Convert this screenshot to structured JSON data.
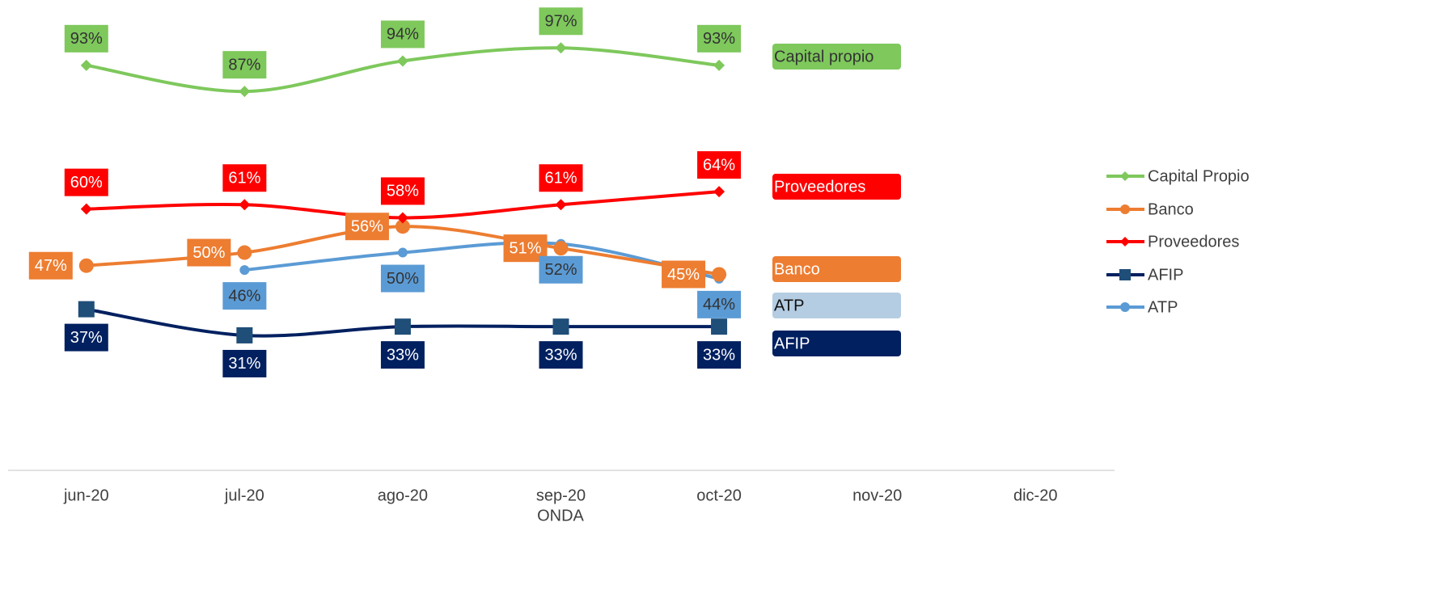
{
  "chart_data": {
    "type": "line",
    "categories": [
      "jun-20",
      "jul-20",
      "ago-20",
      "sep-20",
      "oct-20",
      "nov-20",
      "dic-20"
    ],
    "x_label": "ONDA",
    "ylim": [
      0,
      108
    ],
    "smooth": true,
    "legend": "right",
    "series": [
      {
        "name": "Capital Propio",
        "tag": "Capital propio",
        "color": "#7ec85c",
        "tag_color": "#7ec85c",
        "marker": "diamond",
        "values": [
          93,
          87,
          94,
          97,
          93,
          null,
          null
        ],
        "value_labels": [
          "93%",
          "87%",
          "94%",
          "97%",
          "93%",
          null,
          null
        ]
      },
      {
        "name": "Banco",
        "tag": "Banco",
        "color": "#ed7d31",
        "tag_color": "#ed7d31",
        "marker": "circle",
        "values": [
          47,
          50,
          56,
          51,
          45,
          null,
          null
        ],
        "value_labels": [
          "47%",
          "50%",
          "56%",
          "51%",
          "45%",
          null,
          null
        ]
      },
      {
        "name": "Proveedores",
        "tag": "Proveedores",
        "color": "#ff0000",
        "tag_color": "#ff0000",
        "marker": "diamond",
        "values": [
          60,
          61,
          58,
          61,
          64,
          null,
          null
        ],
        "value_labels": [
          "60%",
          "61%",
          "58%",
          "61%",
          "64%",
          null,
          null
        ]
      },
      {
        "name": "AFIP",
        "tag": "AFIP",
        "color": "#002060",
        "tag_color": "#002060",
        "marker_color": "#1f4e79",
        "marker": "square",
        "values": [
          37,
          31,
          33,
          33,
          33,
          null,
          null
        ],
        "value_labels": [
          "37%",
          "31%",
          "33%",
          "33%",
          "33%",
          null,
          null
        ]
      },
      {
        "name": "ATP",
        "tag": "ATP",
        "color": "#5b9bd5",
        "tag_color": "#b4cde2",
        "marker": "circle",
        "values": [
          null,
          46,
          50,
          52,
          44,
          null,
          null
        ],
        "value_labels": [
          null,
          "46%",
          "50%",
          "52%",
          "44%",
          null,
          null
        ]
      }
    ]
  }
}
